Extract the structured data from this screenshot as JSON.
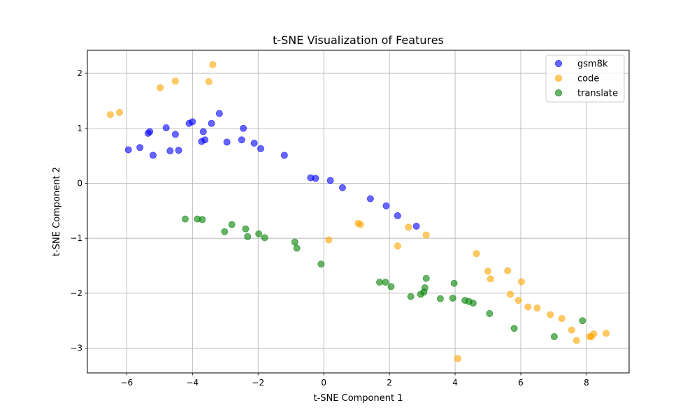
{
  "chart_data": {
    "type": "scatter",
    "title": "t-SNE Visualization of Features",
    "xlabel": "t-SNE Component 1",
    "ylabel": "t-SNE Component 2",
    "xlim": [
      -7.2,
      9.3
    ],
    "ylim": [
      -3.45,
      2.42
    ],
    "xticks": [
      -6,
      -4,
      -2,
      0,
      2,
      4,
      6,
      8
    ],
    "yticks": [
      -3,
      -2,
      -1,
      0,
      1,
      2
    ],
    "xtick_labels": [
      "−6",
      "−4",
      "−2",
      "0",
      "2",
      "4",
      "6",
      "8"
    ],
    "ytick_labels": [
      "−3",
      "−2",
      "−1",
      "0",
      "1",
      "2"
    ],
    "grid": true,
    "legend_position": "top-right",
    "series": [
      {
        "name": "gsm8k",
        "color": "#0000ff",
        "points": [
          [
            -5.95,
            0.61
          ],
          [
            -5.6,
            0.65
          ],
          [
            -5.35,
            0.91
          ],
          [
            -5.3,
            0.94
          ],
          [
            -5.2,
            0.51
          ],
          [
            -4.8,
            1.01
          ],
          [
            -4.68,
            0.59
          ],
          [
            -4.52,
            0.89
          ],
          [
            -4.42,
            0.6
          ],
          [
            -4.1,
            1.09
          ],
          [
            -4.0,
            1.12
          ],
          [
            -3.72,
            0.76
          ],
          [
            -3.67,
            0.94
          ],
          [
            -3.62,
            0.79
          ],
          [
            -3.42,
            1.09
          ],
          [
            -3.18,
            1.27
          ],
          [
            -2.95,
            0.75
          ],
          [
            -2.5,
            0.79
          ],
          [
            -2.45,
            1.0
          ],
          [
            -2.12,
            0.73
          ],
          [
            -1.92,
            0.63
          ],
          [
            -1.2,
            0.51
          ],
          [
            -0.4,
            0.1
          ],
          [
            -0.25,
            0.09
          ],
          [
            0.2,
            0.05
          ],
          [
            0.57,
            -0.08
          ],
          [
            1.42,
            -0.28
          ],
          [
            1.9,
            -0.41
          ],
          [
            2.25,
            -0.59
          ],
          [
            2.82,
            -0.78
          ]
        ]
      },
      {
        "name": "code",
        "color": "#ffa500",
        "points": [
          [
            -6.5,
            1.25
          ],
          [
            -6.22,
            1.29
          ],
          [
            -4.98,
            1.74
          ],
          [
            -4.52,
            1.86
          ],
          [
            -3.5,
            1.85
          ],
          [
            -3.38,
            2.16
          ],
          [
            1.05,
            -0.73
          ],
          [
            1.12,
            -0.75
          ],
          [
            0.15,
            -1.03
          ],
          [
            2.25,
            -1.14
          ],
          [
            2.58,
            -0.8
          ],
          [
            3.12,
            -0.94
          ],
          [
            4.65,
            -1.28
          ],
          [
            5.0,
            -1.6
          ],
          [
            5.08,
            -1.74
          ],
          [
            5.6,
            -1.59
          ],
          [
            5.68,
            -2.02
          ],
          [
            5.93,
            -2.13
          ],
          [
            6.02,
            -1.79
          ],
          [
            6.22,
            -2.25
          ],
          [
            6.5,
            -2.27
          ],
          [
            6.9,
            -2.39
          ],
          [
            7.25,
            -2.46
          ],
          [
            7.55,
            -2.67
          ],
          [
            7.7,
            -2.86
          ],
          [
            8.1,
            -2.79
          ],
          [
            8.15,
            -2.79
          ],
          [
            8.22,
            -2.74
          ],
          [
            8.6,
            -2.73
          ],
          [
            4.08,
            -3.19
          ]
        ]
      },
      {
        "name": "translate",
        "color": "#008000",
        "points": [
          [
            -4.22,
            -0.65
          ],
          [
            -3.85,
            -0.65
          ],
          [
            -3.7,
            -0.66
          ],
          [
            -3.02,
            -0.88
          ],
          [
            -2.8,
            -0.75
          ],
          [
            -2.38,
            -0.83
          ],
          [
            -2.32,
            -0.97
          ],
          [
            -1.98,
            -0.92
          ],
          [
            -1.8,
            -0.99
          ],
          [
            -0.88,
            -1.07
          ],
          [
            -0.82,
            -1.18
          ],
          [
            -0.08,
            -1.47
          ],
          [
            1.7,
            -1.8
          ],
          [
            1.88,
            -1.8
          ],
          [
            2.05,
            -1.88
          ],
          [
            2.65,
            -2.06
          ],
          [
            2.95,
            -2.02
          ],
          [
            3.05,
            -1.98
          ],
          [
            3.08,
            -1.9
          ],
          [
            3.12,
            -1.73
          ],
          [
            3.55,
            -2.1
          ],
          [
            3.93,
            -2.09
          ],
          [
            3.97,
            -1.82
          ],
          [
            4.3,
            -2.13
          ],
          [
            4.42,
            -2.15
          ],
          [
            4.55,
            -2.18
          ],
          [
            5.05,
            -2.37
          ],
          [
            5.8,
            -2.64
          ],
          [
            7.02,
            -2.79
          ],
          [
            7.88,
            -2.5
          ]
        ]
      }
    ]
  }
}
